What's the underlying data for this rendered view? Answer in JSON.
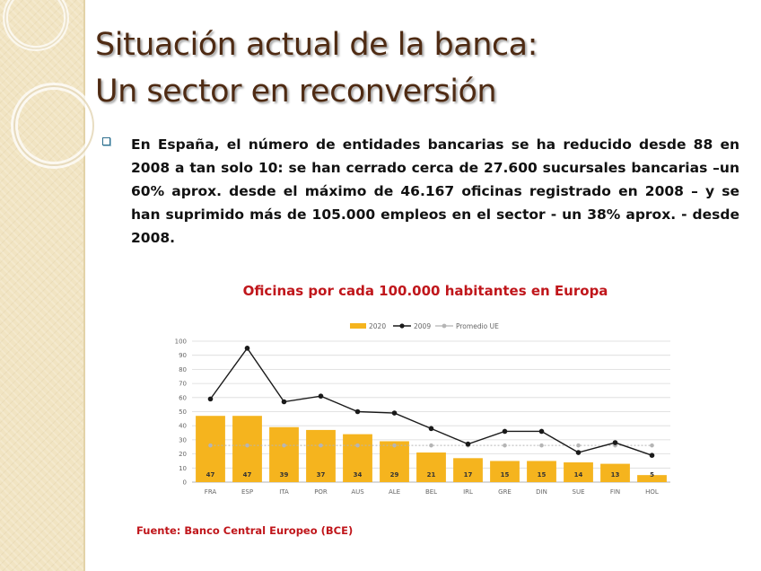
{
  "title": {
    "line1": "Situación actual de la banca:",
    "line2": "Un sector en reconversión"
  },
  "bullet": {
    "text": "En España, el número de entidades bancarias se ha reducido desde 88 en 2008 a tan solo 10: se han cerrado cerca de 27.600 sucursales bancarias –un 60% aprox. desde el máximo de 46.167 oficinas registrado en 2008 – y se han suprimido más de 105.000 empleos en el sector - un 38% aprox. - desde 2008."
  },
  "source": "Fuente: Banco Central Europeo (BCE)",
  "colors": {
    "title": "#4f2b13",
    "accent_red": "#c0161b",
    "bar": "#f5b41e",
    "line_2009": "#1a1a1a",
    "line_avg": "#b5b5b5",
    "band": "#f1e4c2"
  },
  "chart_data": {
    "type": "bar",
    "title": "Oficinas por cada 100.000 habitantes en Europa",
    "categories": [
      "FRA",
      "ESP",
      "ITA",
      "POR",
      "AUS",
      "ALE",
      "BEL",
      "IRL",
      "GRE",
      "DIN",
      "SUE",
      "FIN",
      "HOL"
    ],
    "series": [
      {
        "name": "2020",
        "kind": "bar",
        "values": [
          47,
          47,
          39,
          37,
          34,
          29,
          21,
          17,
          15,
          15,
          14,
          13,
          5
        ]
      },
      {
        "name": "2009",
        "kind": "line",
        "values": [
          59,
          95,
          57,
          61,
          50,
          49,
          38,
          27,
          36,
          36,
          21,
          28,
          19
        ]
      },
      {
        "name": "Promedio UE",
        "kind": "line",
        "values": [
          26,
          26,
          26,
          26,
          26,
          26,
          26,
          26,
          26,
          26,
          26,
          26,
          26
        ]
      }
    ],
    "ylim": [
      0,
      100
    ],
    "yticks": [
      0,
      10,
      20,
      30,
      40,
      50,
      60,
      70,
      80,
      90,
      100
    ],
    "grid": true,
    "legend_position": "top"
  }
}
